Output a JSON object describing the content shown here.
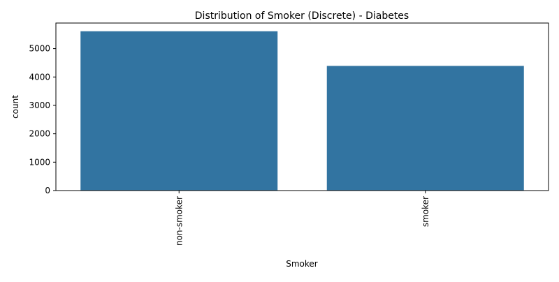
{
  "chart_data": {
    "type": "bar",
    "title": "Distribution of Smoker (Discrete) - Diabetes",
    "xlabel": "Smoker",
    "ylabel": "count",
    "categories": [
      "non-smoker",
      "smoker"
    ],
    "values": [
      5610,
      4390
    ],
    "ylim": [
      0,
      5900
    ],
    "yticks": [
      0,
      1000,
      2000,
      3000,
      4000,
      5000
    ],
    "grid": false,
    "legend": "none",
    "colors": {
      "bar": "#3274a1",
      "axis": "#000000",
      "background": "#ffffff"
    }
  }
}
